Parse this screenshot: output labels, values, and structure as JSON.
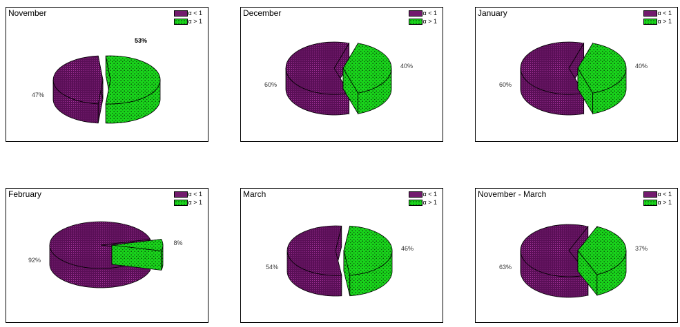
{
  "colors": {
    "alpha_lt_1": "#5a0f57",
    "alpha_gt_1": "#19d41b"
  },
  "legend": {
    "lt": "α < 1",
    "gt": "α > 1"
  },
  "chart_data": [
    {
      "type": "pie",
      "title": "November",
      "series": [
        {
          "name": "α < 1",
          "value": 47,
          "label": "47%"
        },
        {
          "name": "α > 1",
          "value": 53,
          "label": "53%"
        }
      ]
    },
    {
      "type": "pie",
      "title": "December",
      "series": [
        {
          "name": "α < 1",
          "value": 60,
          "label": "60%"
        },
        {
          "name": "α > 1",
          "value": 40,
          "label": "40%"
        }
      ]
    },
    {
      "type": "pie",
      "title": "January",
      "series": [
        {
          "name": "α < 1",
          "value": 60,
          "label": "60%"
        },
        {
          "name": "α > 1",
          "value": 40,
          "label": "40%"
        }
      ]
    },
    {
      "type": "pie",
      "title": "February",
      "series": [
        {
          "name": "α < 1",
          "value": 92,
          "label": "92%"
        },
        {
          "name": "α > 1",
          "value": 8,
          "label": "8%"
        }
      ]
    },
    {
      "type": "pie",
      "title": "March",
      "series": [
        {
          "name": "α < 1",
          "value": 54,
          "label": "54%"
        },
        {
          "name": "α > 1",
          "value": 46,
          "label": "46%"
        }
      ]
    },
    {
      "type": "pie",
      "title": "November - March",
      "series": [
        {
          "name": "α < 1",
          "value": 63,
          "label": "63%"
        },
        {
          "name": "α > 1",
          "value": 37,
          "label": "37%"
        }
      ]
    }
  ]
}
